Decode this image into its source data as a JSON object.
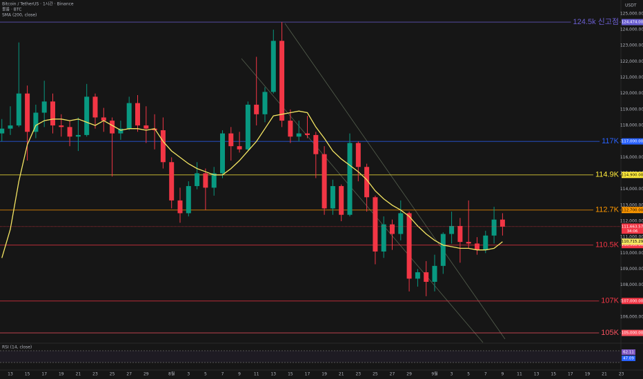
{
  "chart_data": {
    "type": "candlestick",
    "title": "Bitcoin / TetherUS · 1시간 · Binance",
    "subtitle": "볼륨 · BTC",
    "currency": "USDT",
    "up_color": "#089981",
    "down_color": "#f23645",
    "grid": false,
    "categories": [
      null,
      "13",
      null,
      "15",
      null,
      "17",
      null,
      "19",
      null,
      "21",
      null,
      "23",
      null,
      "25",
      null,
      "27",
      null,
      "29",
      null,
      null,
      "8월",
      null,
      "3",
      null,
      "5",
      null,
      "7",
      null,
      "9",
      null,
      "11",
      null,
      "13",
      null,
      "15",
      null,
      "17",
      null,
      "19",
      null,
      "21",
      null,
      "23",
      null,
      "25",
      null,
      "27",
      null,
      "29",
      null,
      null,
      "9월",
      null,
      "3",
      null,
      "5",
      null,
      "7",
      null,
      "9",
      null,
      "11",
      null,
      "13",
      null,
      "15",
      null,
      "17",
      null,
      "19",
      null,
      "21",
      null,
      "23"
    ],
    "open": [
      117500,
      117800,
      118000,
      120000,
      117600,
      118800,
      119500,
      118000,
      117900,
      117300,
      117400,
      119800,
      118500,
      118300,
      117500,
      117800,
      119400,
      118000,
      117800,
      117700,
      115700,
      113300,
      112500,
      114200,
      115000,
      114100,
      115000,
      117500,
      116700,
      116500,
      119300,
      118700,
      120100,
      123300,
      118300,
      117300,
      117500,
      117400,
      116200,
      112800,
      114200,
      112400,
      116900,
      115400,
      113500,
      110100,
      111800,
      111200,
      112500,
      108400,
      108800,
      108200,
      109200,
      111200,
      111700,
      110700,
      110600,
      110200,
      111100,
      112100,
      null,
      null,
      null,
      null,
      null,
      null,
      null,
      null,
      null,
      null,
      null,
      null,
      null,
      null
    ],
    "high": [
      118400,
      119200,
      123200,
      120500,
      119300,
      120800,
      120000,
      118700,
      118300,
      118500,
      120600,
      120000,
      119100,
      118500,
      118300,
      119800,
      119900,
      119200,
      118700,
      118500,
      116000,
      114100,
      114500,
      115700,
      115300,
      115400,
      117700,
      117900,
      117600,
      119500,
      122300,
      120400,
      124000,
      124474,
      119000,
      118300,
      118600,
      117600,
      116700,
      114600,
      114300,
      117500,
      117000,
      115600,
      113600,
      112300,
      112100,
      113300,
      112600,
      109000,
      109500,
      109900,
      111300,
      112600,
      112200,
      113300,
      111000,
      111400,
      112900,
      112500,
      null,
      null,
      null,
      null,
      null,
      null,
      null,
      null,
      null,
      null,
      null,
      null,
      null,
      null
    ],
    "low": [
      117000,
      117400,
      117900,
      115800,
      117200,
      117900,
      117500,
      117300,
      116700,
      116400,
      117300,
      117800,
      117600,
      114800,
      117100,
      117700,
      117600,
      116900,
      116500,
      115300,
      112800,
      111900,
      112300,
      114000,
      112700,
      113600,
      114700,
      115800,
      116300,
      116400,
      118000,
      118200,
      120000,
      117900,
      116900,
      117000,
      117200,
      114700,
      112400,
      112400,
      112000,
      112300,
      114500,
      112600,
      109300,
      109700,
      110200,
      110800,
      107600,
      107900,
      107300,
      107600,
      108700,
      110600,
      109400,
      110300,
      109900,
      110000,
      110600,
      111100,
      null,
      null,
      null,
      null,
      null,
      null,
      null,
      null,
      null,
      null,
      null,
      null,
      null,
      null
    ],
    "close": [
      117800,
      118000,
      120000,
      117600,
      118800,
      119500,
      118000,
      117900,
      117300,
      117400,
      119800,
      118500,
      118300,
      117500,
      117800,
      119400,
      118000,
      117800,
      117700,
      115700,
      113300,
      112500,
      114200,
      115000,
      114100,
      115000,
      117500,
      116700,
      116500,
      119300,
      118700,
      120100,
      123300,
      118300,
      117300,
      117500,
      117400,
      116200,
      112800,
      114200,
      112400,
      116900,
      115400,
      113500,
      110100,
      111800,
      111200,
      112500,
      108400,
      108800,
      108200,
      109200,
      111200,
      111700,
      110700,
      110600,
      110200,
      111100,
      112100,
      111660,
      null,
      null,
      null,
      null,
      null,
      null,
      null,
      null,
      null,
      null,
      null,
      null,
      null,
      null
    ],
    "series": [
      {
        "name": "SMA (200, close)",
        "color": "#f5e663",
        "values": [
          109700,
          111500,
          114500,
          116800,
          118000,
          118300,
          118400,
          118400,
          118300,
          118400,
          118200,
          118000,
          118300,
          118000,
          117700,
          117800,
          117800,
          117700,
          117800,
          117000,
          116400,
          116000,
          115600,
          115300,
          115100,
          114900,
          114900,
          115300,
          115800,
          116400,
          117000,
          117800,
          118600,
          118700,
          118800,
          118900,
          118800,
          117900,
          117200,
          116400,
          115900,
          115500,
          115100,
          114600,
          113900,
          113400,
          113000,
          112700,
          112300,
          111700,
          111200,
          110800,
          110500,
          110400,
          110300,
          110300,
          110200,
          110200,
          110300,
          110715,
          null,
          null,
          null,
          null,
          null,
          null,
          null,
          null,
          null,
          null,
          null,
          null,
          null,
          null
        ]
      }
    ],
    "ylim": [
      104400,
      125860
    ],
    "yticks": [
      {
        "value": 106000,
        "label": "106,000.00"
      },
      {
        "value": 107000,
        "label": "107,000.00"
      },
      {
        "value": 108000,
        "label": "108,000.00"
      },
      {
        "value": 109000,
        "label": "109,000.00"
      },
      {
        "value": 110000,
        "label": "110,000.00"
      },
      {
        "value": 111000,
        "label": "111,000.00"
      },
      {
        "value": 112000,
        "label": "112,000.00"
      },
      {
        "value": 113000,
        "label": "113,000.00"
      },
      {
        "value": 114000,
        "label": "114,000.00"
      },
      {
        "value": 115000,
        "label": "115,000.00"
      },
      {
        "value": 116000,
        "label": "116,000.00"
      },
      {
        "value": 117000,
        "label": "117,000.00"
      },
      {
        "value": 118000,
        "label": "118,000.00"
      },
      {
        "value": 119000,
        "label": "119,000.00"
      },
      {
        "value": 120000,
        "label": "120,000.00"
      },
      {
        "value": 121000,
        "label": "121,000.00"
      },
      {
        "value": 122000,
        "label": "122,000.00"
      },
      {
        "value": 123000,
        "label": "123,000.00"
      },
      {
        "value": 124000,
        "label": "124,000.00"
      },
      {
        "value": 125000,
        "label": "125,000.00"
      }
    ],
    "levels": [
      {
        "value": 124474,
        "label": "124.5k 신고점",
        "axis_label": "124,474.00",
        "color": "#6b5fd1"
      },
      {
        "value": 117000,
        "label": "117K",
        "axis_label": "117,000.00",
        "color": "#2962ff"
      },
      {
        "value": 114900,
        "label": "114.9K",
        "axis_label": "114,900.00",
        "color": "#ffeb3b"
      },
      {
        "value": 112700,
        "label": "112.7K",
        "axis_label": "112,700.00",
        "color": "#ff9800"
      },
      {
        "value": 110500,
        "label": "110.5K",
        "axis_label": "110,500.00",
        "color": "#f23645"
      },
      {
        "value": 107000,
        "label": "107K",
        "axis_label": "107,000.00",
        "color": "#f23645"
      },
      {
        "value": 105000,
        "label": "105K",
        "axis_label": "105,000.00",
        "color": "#f7525f"
      }
    ],
    "price_tags": [
      {
        "value": 111663.57,
        "label": "111,663.57",
        "sub": "34:06",
        "color": "#f23645"
      },
      {
        "value": 110715.29,
        "label": "110,715.29",
        "color": "#f5e663"
      }
    ],
    "rsi": {
      "title": "RSI (14, close)",
      "values": [
        62.11,
        47.09
      ],
      "colors": [
        "#7e57c2",
        "#2962ff"
      ]
    }
  }
}
